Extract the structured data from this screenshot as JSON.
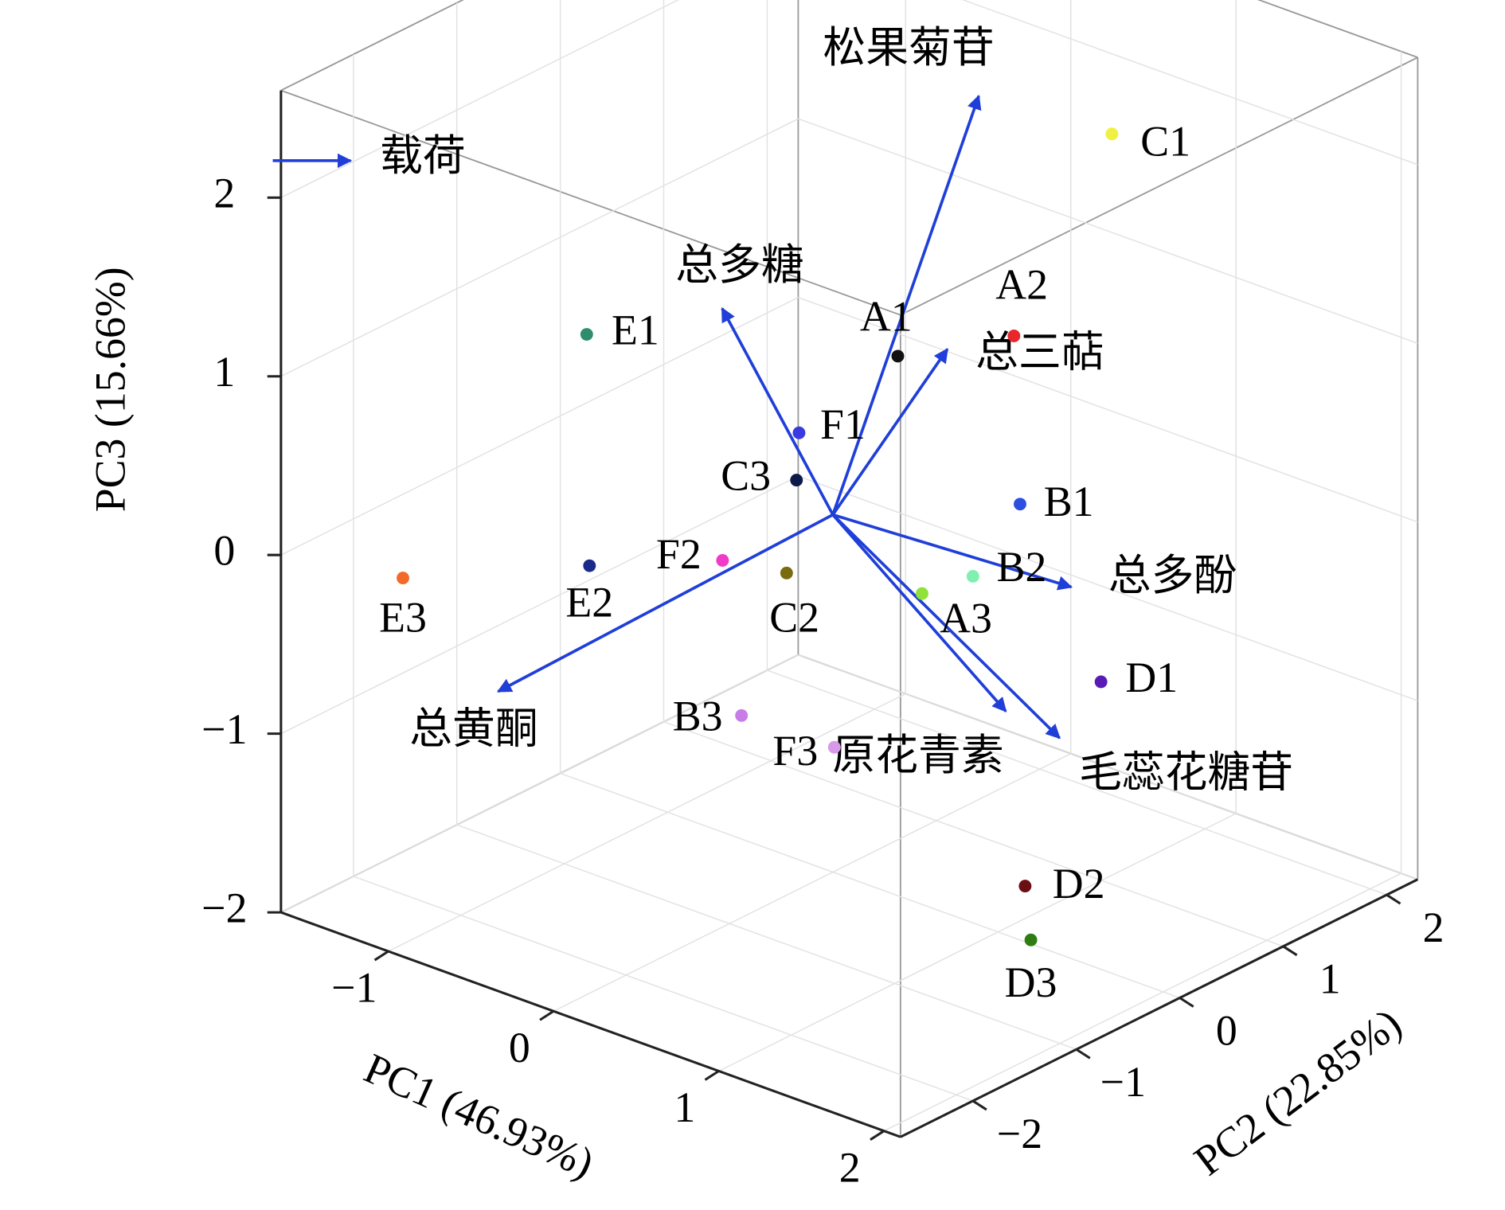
{
  "chart_data": {
    "type": "scatter3d",
    "xlabel": "PC1 (46.93%)",
    "ylabel": "PC2 (22.85%)",
    "zlabel": "PC3 (15.66%)",
    "xlim": [
      -1.65,
      2.1
    ],
    "ylim": [
      -2.7,
      2.3
    ],
    "zlim": [
      -2,
      2.6
    ],
    "xticks": [
      {
        "value": -1,
        "label": "−1"
      },
      0,
      1,
      2
    ],
    "yticks": [
      {
        "value": -2,
        "label": "−2"
      },
      {
        "value": -1,
        "label": "−1"
      },
      0,
      1,
      2
    ],
    "zticks": [
      {
        "value": -2,
        "label": "−2"
      },
      {
        "value": -1,
        "label": "−1"
      },
      0,
      1,
      2
    ],
    "grid": true,
    "points": [
      {
        "name": "A1",
        "color": "#111111",
        "x": 0.08,
        "y": 0.5,
        "z": 0.77
      },
      {
        "name": "A2",
        "color": "#e8262b",
        "x": 0.47,
        "y": 1.0,
        "z": 0.87
      },
      {
        "name": "A3",
        "color": "#8ee23a",
        "x": 0.54,
        "y": 0,
        "z": -0.26
      },
      {
        "name": "B1",
        "color": "#2d4fe0",
        "x": 0.82,
        "y": 0.5,
        "z": 0.19
      },
      {
        "name": "B2",
        "color": "#80f0b0",
        "x": 0.66,
        "y": 0.3,
        "z": -0.21
      },
      {
        "name": "B3",
        "color": "#c77ce8",
        "x": -0.24,
        "y": -0.5,
        "z": -1.06
      },
      {
        "name": "C1",
        "color": "#f0f040",
        "x": 0.75,
        "y": 1.5,
        "z": 1.95
      },
      {
        "name": "C2",
        "color": "#7a6a10",
        "x": -0.28,
        "y": 0,
        "z": -0.42
      },
      {
        "name": "C3",
        "color": "#0c1a4a",
        "x": -0.22,
        "y": 0,
        "z": 0.12
      },
      {
        "name": "D1",
        "color": "#5a1ab5",
        "x": 1.31,
        "y": 0.5,
        "z": -0.64
      },
      {
        "name": "D2",
        "color": "#6b0f14",
        "x": 1.79,
        "y": -1,
        "z": -1.19
      },
      {
        "name": "D3",
        "color": "#2e7d12",
        "x": 1.95,
        "y": -1.2,
        "z": -1.38
      },
      {
        "name": "E1",
        "color": "#2f8c6e",
        "x": -1.49,
        "y": 0,
        "z": 0.51
      },
      {
        "name": "E2",
        "color": "#1a2a8a",
        "x": -1.16,
        "y": -0.5,
        "z": -0.53
      },
      {
        "name": "E3",
        "color": "#f26a2a",
        "x": -1.35,
        "y": -2,
        "z": -0.23
      },
      {
        "name": "F1",
        "color": "#3a3ae0",
        "x": -0.33,
        "y": 0.2,
        "z": 0.29
      },
      {
        "name": "F2",
        "color": "#f03ac8",
        "x": -0.48,
        "y": -0.3,
        "z": -0.33
      },
      {
        "name": "F3",
        "color": "#d89ae8",
        "x": 0.51,
        "y": -0.8,
        "z": -0.9
      }
    ],
    "loadings_name": "载荷",
    "loadings_color": "#1f3fd8",
    "loadings": [
      {
        "name": "松果菊苷",
        "x": 0.57,
        "y": 0.5,
        "z": 2.39
      },
      {
        "name": "总多糖",
        "x": -0.67,
        "y": 0,
        "z": 0.93
      },
      {
        "name": "总三萜",
        "x": 0.38,
        "y": 0.5,
        "z": 0.91
      },
      {
        "name": "总多酚",
        "x": 1.13,
        "y": 0.5,
        "z": -0.17
      },
      {
        "name": "总黄酮",
        "x": -1.4,
        "y": -1,
        "z": -1.17
      },
      {
        "name": "原花青素",
        "x": 1.36,
        "y": -0.5,
        "z": -0.5
      },
      {
        "name": "毛蕊花糖苷",
        "x": 1.56,
        "y": -0.3,
        "z": -0.64
      }
    ]
  }
}
